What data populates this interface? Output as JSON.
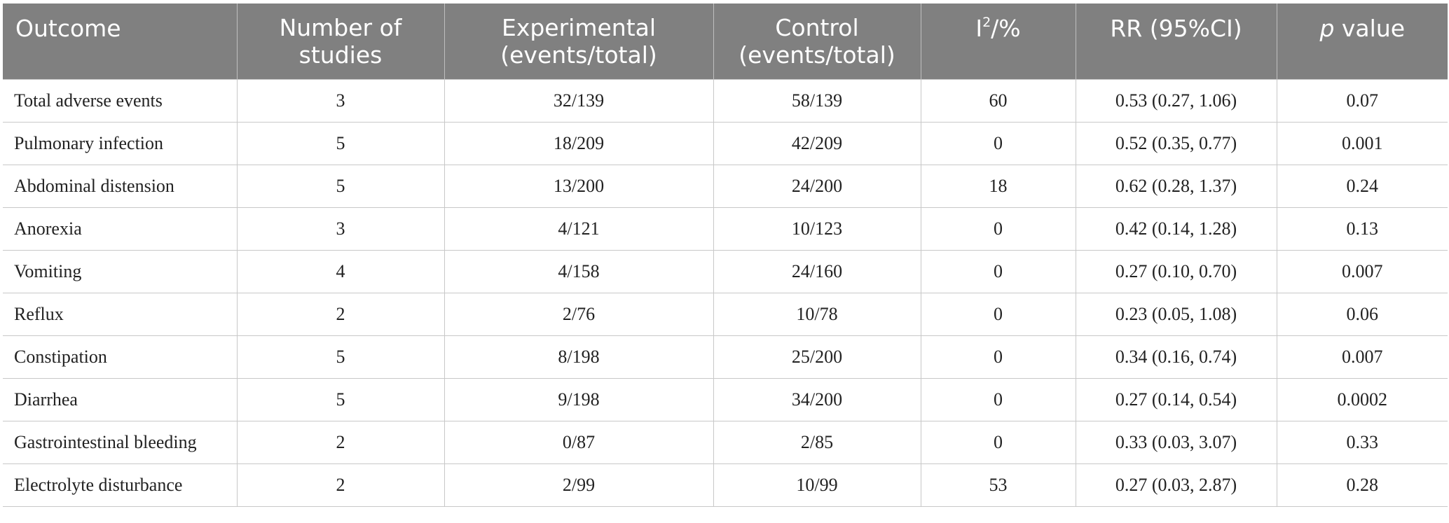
{
  "header": {
    "outcome": "Outcome",
    "num_studies": "Number of studies",
    "experimental": "Experimental (events/total)",
    "control": "Control (events/total)",
    "i2_base": "I",
    "i2_sup": "2",
    "i2_suffix": "/%",
    "rr": "RR (95%CI)",
    "p_italic": "p",
    "p_rest": " value"
  },
  "rows": [
    {
      "outcome": "Total adverse events",
      "studies": "3",
      "experimental": "32/139",
      "control": "58/139",
      "i2": "60",
      "rr": "0.53 (0.27, 1.06)",
      "p": "0.07"
    },
    {
      "outcome": "Pulmonary infection",
      "studies": "5",
      "experimental": "18/209",
      "control": "42/209",
      "i2": "0",
      "rr": "0.52 (0.35, 0.77)",
      "p": "0.001"
    },
    {
      "outcome": "Abdominal distension",
      "studies": "5",
      "experimental": "13/200",
      "control": "24/200",
      "i2": "18",
      "rr": "0.62 (0.28, 1.37)",
      "p": "0.24"
    },
    {
      "outcome": "Anorexia",
      "studies": "3",
      "experimental": "4/121",
      "control": "10/123",
      "i2": "0",
      "rr": "0.42 (0.14, 1.28)",
      "p": "0.13"
    },
    {
      "outcome": "Vomiting",
      "studies": "4",
      "experimental": "4/158",
      "control": "24/160",
      "i2": "0",
      "rr": "0.27 (0.10, 0.70)",
      "p": "0.007"
    },
    {
      "outcome": "Reflux",
      "studies": "2",
      "experimental": "2/76",
      "control": "10/78",
      "i2": "0",
      "rr": "0.23 (0.05, 1.08)",
      "p": "0.06"
    },
    {
      "outcome": "Constipation",
      "studies": "5",
      "experimental": "8/198",
      "control": "25/200",
      "i2": "0",
      "rr": "0.34 (0.16, 0.74)",
      "p": "0.007"
    },
    {
      "outcome": "Diarrhea",
      "studies": "5",
      "experimental": "9/198",
      "control": "34/200",
      "i2": "0",
      "rr": "0.27 (0.14, 0.54)",
      "p": "0.0002"
    },
    {
      "outcome": "Gastrointestinal bleeding",
      "studies": "2",
      "experimental": "0/87",
      "control": "2/85",
      "i2": "0",
      "rr": "0.33 (0.03, 3.07)",
      "p": "0.33"
    },
    {
      "outcome": "Electrolyte disturbance",
      "studies": "2",
      "experimental": "2/99",
      "control": "10/99",
      "i2": "53",
      "rr": "0.27 (0.03, 2.87)",
      "p": "0.28"
    }
  ],
  "colors": {
    "header_bg": "#808080",
    "header_text": "#ffffff",
    "grid": "#c8c8c8"
  }
}
